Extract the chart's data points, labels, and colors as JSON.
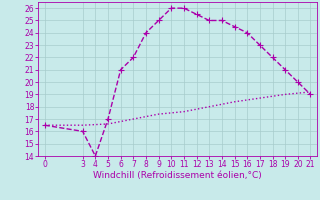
{
  "xlabel": "Windchill (Refroidissement éolien,°C)",
  "xlim": [
    -0.5,
    21.5
  ],
  "ylim": [
    14,
    26.5
  ],
  "xticks": [
    0,
    3,
    4,
    5,
    6,
    7,
    8,
    9,
    10,
    11,
    12,
    13,
    14,
    15,
    16,
    17,
    18,
    19,
    20,
    21
  ],
  "yticks": [
    14,
    15,
    16,
    17,
    18,
    19,
    20,
    21,
    22,
    23,
    24,
    25,
    26
  ],
  "line_color": "#aa00aa",
  "bg_color": "#c8eaea",
  "grid_color": "#a8cccc",
  "curve_x": [
    0,
    3,
    4,
    5,
    6,
    7,
    8,
    9,
    10,
    11,
    12,
    13,
    14,
    15,
    16,
    17,
    18,
    19,
    20,
    21
  ],
  "curve_y": [
    16.5,
    16.0,
    14.0,
    17.0,
    21.0,
    22.0,
    24.0,
    25.0,
    26.0,
    26.0,
    25.5,
    25.0,
    25.0,
    24.5,
    24.0,
    23.0,
    22.0,
    21.0,
    20.0,
    19.0
  ],
  "ref_x": [
    0,
    3,
    5,
    7,
    9,
    11,
    13,
    15,
    17,
    19,
    21
  ],
  "ref_y": [
    16.5,
    16.5,
    16.6,
    17.0,
    17.4,
    17.6,
    18.0,
    18.4,
    18.7,
    19.0,
    19.2
  ],
  "marker": "+",
  "marker_size": 4,
  "line_width": 1.0,
  "tick_fontsize": 5.5,
  "label_fontsize": 6.5
}
